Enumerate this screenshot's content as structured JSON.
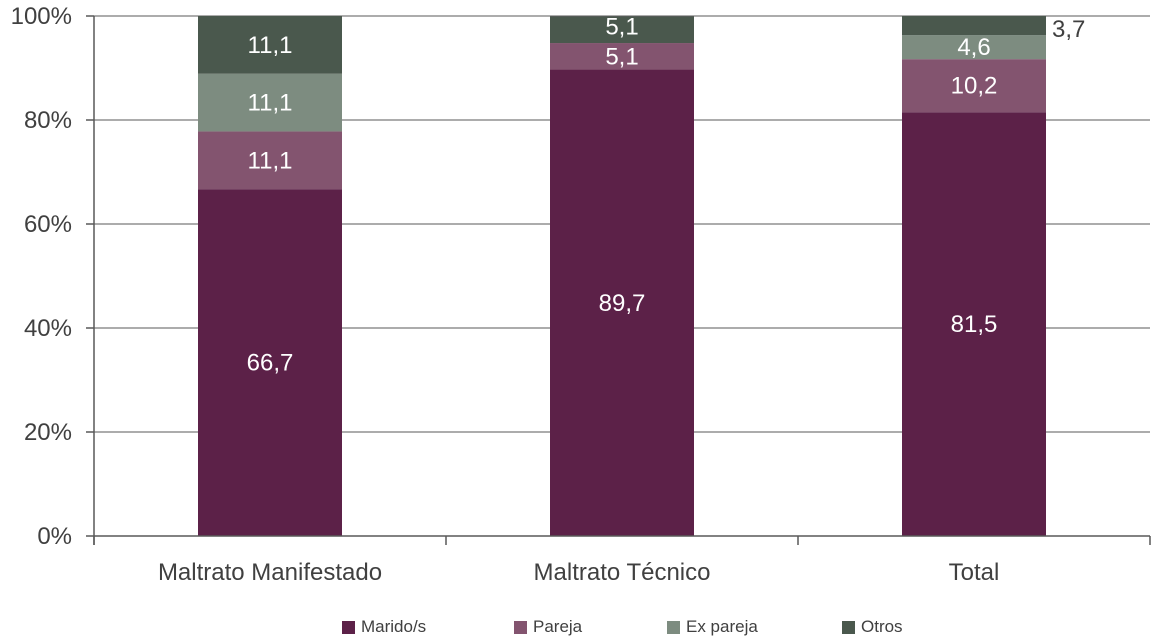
{
  "chart_data": {
    "type": "bar",
    "stacked": true,
    "percent": true,
    "categories": [
      "Maltrato Manifestado",
      "Maltrato Técnico",
      "Total"
    ],
    "series": [
      {
        "name": "Marido/s",
        "color": "#5c2148",
        "values": [
          66.7,
          89.7,
          81.5
        ],
        "labels": [
          "66,7",
          "89,7",
          "81,5"
        ]
      },
      {
        "name": "Pareja",
        "color": "#83546f",
        "values": [
          11.1,
          5.1,
          10.2
        ],
        "labels": [
          "11,1",
          "5,1",
          "10,2"
        ]
      },
      {
        "name": "Ex pareja",
        "color": "#7d8c80",
        "values": [
          11.1,
          0,
          4.6
        ],
        "labels": [
          "11,1",
          "",
          "4,6"
        ]
      },
      {
        "name": "Otros",
        "color": "#4a584d",
        "values": [
          11.1,
          5.1,
          3.7
        ],
        "labels": [
          "11,1",
          "5,1",
          "3,7"
        ]
      }
    ],
    "yticks": [
      "0%",
      "20%",
      "40%",
      "60%",
      "80%",
      "100%"
    ],
    "ylim": [
      0,
      100
    ],
    "grid": true,
    "legend_position": "bottom"
  }
}
